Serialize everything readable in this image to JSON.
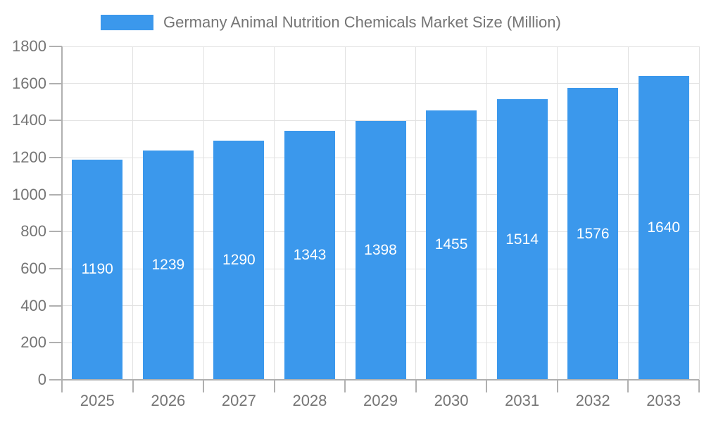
{
  "legend": {
    "label": "Germany Animal Nutrition Chemicals Market Size (Million)"
  },
  "chart_data": {
    "type": "bar",
    "title": "Germany Animal Nutrition Chemicals Market Size (Million)",
    "categories": [
      "2025",
      "2026",
      "2027",
      "2028",
      "2029",
      "2030",
      "2031",
      "2032",
      "2033"
    ],
    "values": [
      1190,
      1239,
      1290,
      1343,
      1398,
      1455,
      1514,
      1576,
      1640
    ],
    "xlabel": "",
    "ylabel": "",
    "ylim": [
      0,
      1800
    ],
    "yticks": [
      0,
      200,
      400,
      600,
      800,
      1000,
      1200,
      1400,
      1600,
      1800
    ],
    "grid": true,
    "legend_position": "top",
    "value_labels": "inside-center",
    "colors": {
      "bar": "#3b98ec",
      "bar_value_text": "#ffffff",
      "axis_text": "#757575",
      "gridline": "#e2e2e2",
      "axis_line": "#b0b0b0",
      "background": "#ffffff"
    }
  }
}
